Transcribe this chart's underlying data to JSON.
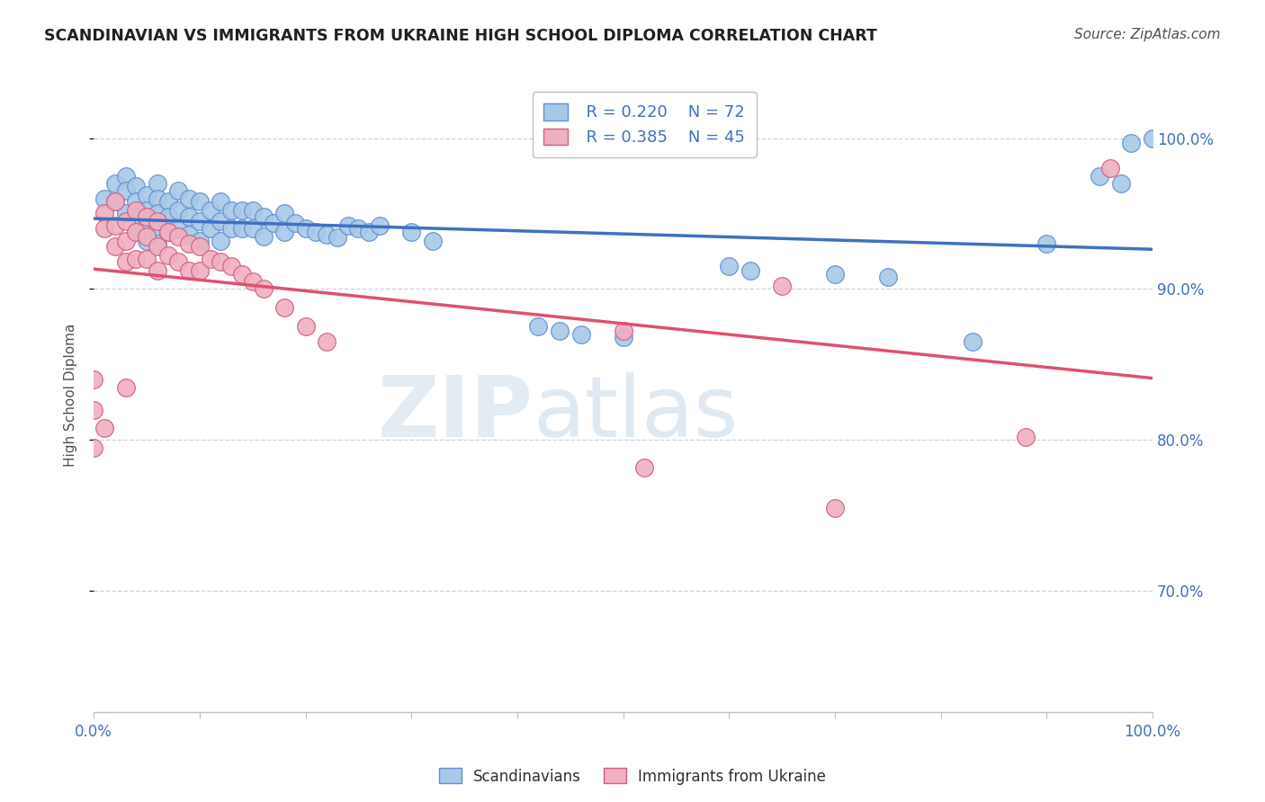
{
  "title": "SCANDINAVIAN VS IMMIGRANTS FROM UKRAINE HIGH SCHOOL DIPLOMA CORRELATION CHART",
  "source": "Source: ZipAtlas.com",
  "ylabel": "High School Diploma",
  "xlim": [
    0.0,
    1.0
  ],
  "ylim": [
    0.62,
    1.04
  ],
  "yticks": [
    0.7,
    0.8,
    0.9,
    1.0
  ],
  "ytick_labels": [
    "70.0%",
    "80.0%",
    "90.0%",
    "100.0%"
  ],
  "legend_blue_R": "R = 0.220",
  "legend_blue_N": "N = 72",
  "legend_pink_R": "R = 0.385",
  "legend_pink_N": "N = 45",
  "legend_label_blue": "Scandinavians",
  "legend_label_pink": "Immigrants from Ukraine",
  "scatter_blue_x": [
    0.01,
    0.02,
    0.02,
    0.03,
    0.03,
    0.03,
    0.04,
    0.04,
    0.04,
    0.04,
    0.05,
    0.05,
    0.05,
    0.05,
    0.06,
    0.06,
    0.06,
    0.06,
    0.06,
    0.07,
    0.07,
    0.07,
    0.08,
    0.08,
    0.08,
    0.09,
    0.09,
    0.09,
    0.1,
    0.1,
    0.1,
    0.11,
    0.11,
    0.12,
    0.12,
    0.12,
    0.13,
    0.13,
    0.14,
    0.14,
    0.15,
    0.15,
    0.16,
    0.16,
    0.17,
    0.18,
    0.18,
    0.19,
    0.2,
    0.21,
    0.22,
    0.23,
    0.24,
    0.25,
    0.26,
    0.27,
    0.3,
    0.32,
    0.42,
    0.44,
    0.46,
    0.5,
    0.6,
    0.62,
    0.7,
    0.75,
    0.83,
    0.9,
    0.95,
    0.97,
    0.98,
    1.0
  ],
  "scatter_blue_y": [
    0.96,
    0.97,
    0.958,
    0.975,
    0.965,
    0.95,
    0.968,
    0.958,
    0.948,
    0.938,
    0.962,
    0.952,
    0.942,
    0.932,
    0.97,
    0.96,
    0.95,
    0.94,
    0.93,
    0.958,
    0.948,
    0.938,
    0.965,
    0.952,
    0.94,
    0.96,
    0.948,
    0.936,
    0.958,
    0.945,
    0.932,
    0.952,
    0.94,
    0.958,
    0.945,
    0.932,
    0.952,
    0.94,
    0.952,
    0.94,
    0.952,
    0.94,
    0.948,
    0.935,
    0.944,
    0.95,
    0.938,
    0.944,
    0.94,
    0.938,
    0.936,
    0.934,
    0.942,
    0.94,
    0.938,
    0.942,
    0.938,
    0.932,
    0.875,
    0.872,
    0.87,
    0.868,
    0.915,
    0.912,
    0.91,
    0.908,
    0.865,
    0.93,
    0.975,
    0.97,
    0.997,
    1.0
  ],
  "scatter_pink_x": [
    0.0,
    0.0,
    0.01,
    0.01,
    0.02,
    0.02,
    0.02,
    0.03,
    0.03,
    0.03,
    0.04,
    0.04,
    0.04,
    0.05,
    0.05,
    0.05,
    0.06,
    0.06,
    0.06,
    0.07,
    0.07,
    0.08,
    0.08,
    0.09,
    0.09,
    0.1,
    0.1,
    0.11,
    0.12,
    0.13,
    0.14,
    0.15,
    0.16,
    0.18,
    0.2,
    0.22,
    0.5,
    0.52,
    0.65,
    0.7,
    0.88,
    0.96,
    0.0,
    0.01,
    0.03
  ],
  "scatter_pink_y": [
    0.82,
    0.795,
    0.95,
    0.94,
    0.958,
    0.942,
    0.928,
    0.945,
    0.932,
    0.918,
    0.952,
    0.938,
    0.92,
    0.948,
    0.935,
    0.92,
    0.945,
    0.928,
    0.912,
    0.938,
    0.922,
    0.935,
    0.918,
    0.93,
    0.912,
    0.928,
    0.912,
    0.92,
    0.918,
    0.915,
    0.91,
    0.905,
    0.9,
    0.888,
    0.875,
    0.865,
    0.872,
    0.782,
    0.902,
    0.755,
    0.802,
    0.98,
    0.84,
    0.808,
    0.835
  ],
  "color_blue": "#a8c8e8",
  "color_pink": "#f0b0c0",
  "color_edge_blue": "#6090d0",
  "color_edge_pink": "#d06080",
  "color_line_blue": "#4070c0",
  "color_line_pink": "#e05070",
  "watermark_zip": "ZIP",
  "watermark_atlas": "atlas",
  "background_color": "#ffffff",
  "grid_color": "#d0d0e0",
  "title_color": "#202020",
  "axis_label_color": "#505050",
  "tick_color": "#4070c0"
}
